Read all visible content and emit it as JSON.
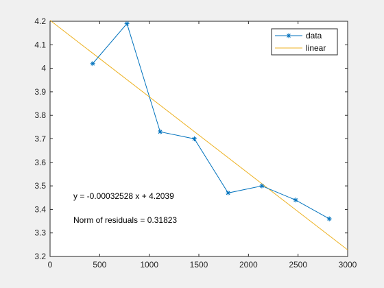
{
  "chart_data": {
    "type": "scatter",
    "title": "",
    "xlabel": "",
    "ylabel": "",
    "xlim": [
      0,
      3000
    ],
    "ylim": [
      3.2,
      4.2
    ],
    "xticks": [
      0,
      500,
      1000,
      1500,
      2000,
      2500,
      3000
    ],
    "yticks": [
      3.2,
      3.3,
      3.4,
      3.5,
      3.6,
      3.7,
      3.8,
      3.9,
      4,
      4.1,
      4.2
    ],
    "grid": false,
    "legend_position": "top-right",
    "series": [
      {
        "name": "data",
        "style": "line-with-asterisk-markers",
        "color": "#0072BD",
        "x": [
          430,
          775,
          1110,
          1455,
          1795,
          2135,
          2475,
          2815
        ],
        "y": [
          4.02,
          4.19,
          3.73,
          3.7,
          3.47,
          3.5,
          3.44,
          3.36
        ]
      },
      {
        "name": "linear",
        "style": "line",
        "color": "#EDB120",
        "fit": {
          "slope": -0.00032528,
          "intercept": 4.2039
        }
      }
    ],
    "annotations": [
      "y = -0.00032528 x + 4.2039",
      "Norm of residuals = 0.31823"
    ]
  }
}
